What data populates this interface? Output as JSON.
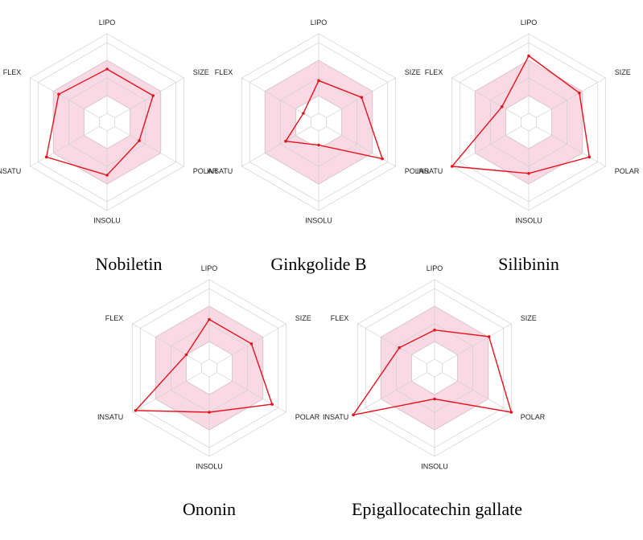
{
  "colors": {
    "grid": "#cfcfcf",
    "range_fill": "#f9d9e4",
    "range_stroke": "#f0b8c8",
    "polygon": "#e8121c",
    "center": "#ffffff"
  },
  "chart_data": [
    {
      "type": "radar",
      "title": "Nobiletin",
      "axes": [
        "LIPO",
        "SIZE",
        "POLAR",
        "INSOLU",
        "INSATU",
        "FLEX"
      ],
      "range": [
        0,
        1
      ],
      "optimal_range": [
        0.3,
        0.7
      ],
      "values": [
        0.6,
        0.6,
        0.42,
        0.6,
        0.79,
        0.63
      ]
    },
    {
      "type": "radar",
      "title": "Ginkgolide B",
      "axes": [
        "LIPO",
        "SIZE",
        "POLAR",
        "INSOLU",
        "INSATU",
        "FLEX"
      ],
      "range": [
        0,
        1
      ],
      "optimal_range": [
        0.3,
        0.7
      ],
      "values": [
        0.47,
        0.56,
        0.83,
        0.26,
        0.43,
        0.2
      ]
    },
    {
      "type": "radar",
      "title": "Silibinin",
      "axes": [
        "LIPO",
        "SIZE",
        "POLAR",
        "INSOLU",
        "INSATU",
        "FLEX"
      ],
      "range": [
        0,
        1
      ],
      "optimal_range": [
        0.3,
        0.7
      ],
      "values": [
        0.75,
        0.66,
        0.79,
        0.58,
        1.0,
        0.35
      ]
    },
    {
      "type": "radar",
      "title": "Ononin",
      "axes": [
        "LIPO",
        "SIZE",
        "POLAR",
        "INSOLU",
        "INSATU",
        "FLEX"
      ],
      "range": [
        0,
        1
      ],
      "optimal_range": [
        0.3,
        0.7
      ],
      "values": [
        0.55,
        0.55,
        0.82,
        0.5,
        0.96,
        0.3
      ]
    },
    {
      "type": "radar",
      "title": "Epigallocatechin gallate",
      "axes": [
        "LIPO",
        "SIZE",
        "POLAR",
        "INSOLU",
        "INSATU",
        "FLEX"
      ],
      "range": [
        0,
        1
      ],
      "optimal_range": [
        0.3,
        0.7
      ],
      "values": [
        0.43,
        0.71,
        1.0,
        0.35,
        1.06,
        0.46
      ]
    }
  ]
}
